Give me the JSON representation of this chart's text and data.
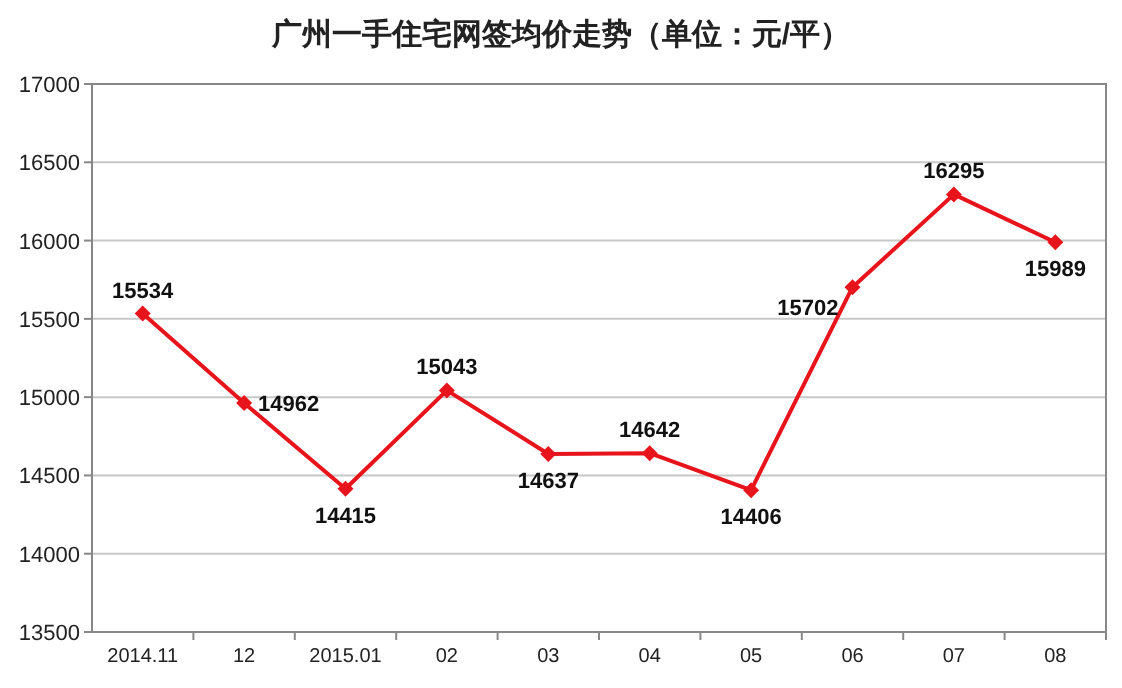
{
  "chart_data": {
    "type": "line",
    "title": "广州一手住宅网签均价走势（单位：元/平）",
    "categories": [
      "2014.11",
      "12",
      "2015.01",
      "02",
      "03",
      "04",
      "05",
      "06",
      "07",
      "08"
    ],
    "series": [
      {
        "color": "#e8141c",
        "values": [
          15534,
          14962,
          14415,
          15043,
          14637,
          14642,
          14406,
          15702,
          16295,
          15989
        ]
      }
    ],
    "ylim": [
      13500,
      17000
    ],
    "yticks": [
      13500,
      14000,
      14500,
      15000,
      15500,
      16000,
      16500,
      17000
    ],
    "grid": "y",
    "marker": "diamond",
    "data_labels": true
  }
}
